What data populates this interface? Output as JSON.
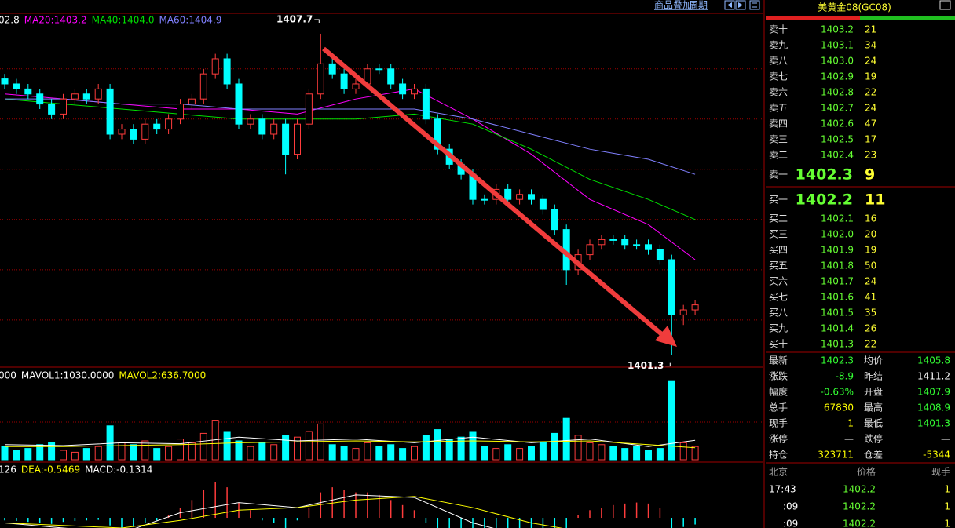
{
  "toolbar": {
    "overlay": "商品叠加",
    "period": "周期"
  },
  "chart_data": {
    "type": "candlestick",
    "ylim": [
      1401.06,
      1408.09
    ],
    "price_grid": [
      1402,
      1403,
      1404,
      1405,
      1406,
      1407
    ],
    "ma_prefix": "02.8",
    "open": [
      1406.8,
      1406.7,
      1406.6,
      1406.5,
      1406.3,
      1406.1,
      1406.4,
      1406.5,
      1406.4,
      1406.6,
      1405.7,
      1405.8,
      1405.6,
      1405.9,
      1405.8,
      1406.0,
      1406.3,
      1406.4,
      1406.9,
      1407.2,
      1406.7,
      1405.9,
      1406.0,
      1405.7,
      1405.9,
      1405.3,
      1405.9,
      1406.5,
      1407.1,
      1406.9,
      1406.6,
      1406.7,
      1407.0,
      1407.0,
      1406.7,
      1406.5,
      1406.6,
      1406.0,
      1405.4,
      1405.1,
      1404.9,
      1404.4,
      1404.4,
      1404.6,
      1404.4,
      1404.5,
      1404.4,
      1404.2,
      1403.8,
      1403.0,
      1403.3,
      1403.5,
      1403.6,
      1403.6,
      1403.5,
      1403.5,
      1403.4,
      1403.2,
      1402.1,
      1402.2
    ],
    "high": [
      1406.9,
      1406.8,
      1406.7,
      1406.6,
      1406.4,
      1406.5,
      1406.6,
      1406.6,
      1406.7,
      1406.7,
      1405.9,
      1405.9,
      1406.0,
      1406.0,
      1406.1,
      1406.4,
      1406.5,
      1407.0,
      1407.3,
      1407.3,
      1406.8,
      1406.1,
      1406.1,
      1406.0,
      1406.0,
      1406.0,
      1406.6,
      1407.7,
      1407.2,
      1407.0,
      1406.8,
      1407.1,
      1407.1,
      1407.1,
      1406.8,
      1406.7,
      1406.7,
      1406.1,
      1405.5,
      1405.2,
      1405.0,
      1404.5,
      1404.7,
      1404.7,
      1404.6,
      1404.6,
      1404.5,
      1404.3,
      1403.9,
      1403.4,
      1403.6,
      1403.7,
      1403.7,
      1403.7,
      1403.6,
      1403.6,
      1403.5,
      1403.3,
      1402.3,
      1402.4
    ],
    "low": [
      1406.6,
      1406.5,
      1406.4,
      1406.2,
      1406.0,
      1406.0,
      1406.3,
      1406.3,
      1406.3,
      1405.6,
      1405.6,
      1405.5,
      1405.5,
      1405.7,
      1405.7,
      1405.9,
      1406.2,
      1406.3,
      1406.8,
      1406.6,
      1405.8,
      1405.8,
      1405.6,
      1405.6,
      1404.9,
      1405.2,
      1405.8,
      1406.4,
      1406.8,
      1406.5,
      1406.5,
      1406.6,
      1406.9,
      1406.6,
      1406.4,
      1406.4,
      1405.9,
      1405.3,
      1405.0,
      1404.8,
      1404.3,
      1404.3,
      1404.3,
      1404.3,
      1404.3,
      1404.3,
      1404.1,
      1403.7,
      1402.7,
      1402.9,
      1403.2,
      1403.4,
      1403.5,
      1403.4,
      1403.4,
      1403.3,
      1403.1,
      1401.3,
      1401.9,
      1402.1
    ],
    "close": [
      1406.7,
      1406.6,
      1406.5,
      1406.3,
      1406.1,
      1406.4,
      1406.5,
      1406.4,
      1406.6,
      1405.7,
      1405.8,
      1405.6,
      1405.9,
      1405.8,
      1406.0,
      1406.3,
      1406.4,
      1406.9,
      1407.2,
      1406.7,
      1405.9,
      1406.0,
      1405.7,
      1405.9,
      1405.3,
      1405.9,
      1406.5,
      1407.1,
      1406.9,
      1406.6,
      1406.7,
      1407.0,
      1407.0,
      1406.7,
      1406.5,
      1406.6,
      1406.0,
      1405.4,
      1405.1,
      1404.9,
      1404.4,
      1404.4,
      1404.6,
      1404.4,
      1404.5,
      1404.4,
      1404.2,
      1403.8,
      1403.0,
      1403.3,
      1403.5,
      1403.6,
      1403.6,
      1403.5,
      1403.5,
      1403.4,
      1403.2,
      1402.1,
      1402.2,
      1402.3
    ],
    "up_color": "#ff3c3c",
    "down_color": "#00ffff",
    "ma_index": [
      0,
      5,
      10,
      15,
      20,
      25,
      30,
      35,
      40,
      45,
      50,
      55,
      59
    ],
    "ma_series": [
      {
        "name": "MA20:1403.2",
        "color": "#ff00ff",
        "values": [
          1406.5,
          1406.4,
          1406.3,
          1406.2,
          1406.2,
          1406.1,
          1406.4,
          1406.6,
          1406.0,
          1405.3,
          1404.4,
          1403.9,
          1403.2
        ]
      },
      {
        "name": "MA40:1404.0",
        "color": "#00e000",
        "values": [
          1406.4,
          1406.3,
          1406.2,
          1406.1,
          1406.0,
          1406.0,
          1406.0,
          1406.1,
          1405.9,
          1405.4,
          1404.8,
          1404.4,
          1404.0
        ]
      },
      {
        "name": "MA60:1404.9",
        "color": "#8080ff",
        "values": [
          1406.4,
          1406.4,
          1406.3,
          1406.3,
          1406.2,
          1406.2,
          1406.2,
          1406.2,
          1406.0,
          1405.7,
          1405.4,
          1405.2,
          1404.9
        ]
      }
    ],
    "annotations": [
      {
        "text": "1407.7",
        "index": 27
      },
      {
        "text": "1401.3",
        "index": 57
      }
    ],
    "volume": {
      "prefix": "000",
      "vlim": [
        0,
        4500
      ],
      "grid": [
        2000
      ],
      "values": [
        700,
        500,
        600,
        800,
        900,
        500,
        400,
        600,
        700,
        1800,
        900,
        800,
        1000,
        600,
        700,
        1100,
        900,
        1400,
        2100,
        1500,
        1000,
        700,
        900,
        800,
        1300,
        1200,
        1500,
        1900,
        800,
        700,
        600,
        900,
        700,
        800,
        600,
        700,
        1300,
        1600,
        1100,
        1200,
        1500,
        700,
        600,
        800,
        600,
        700,
        900,
        1400,
        2200,
        1300,
        900,
        800,
        700,
        600,
        700,
        500,
        600,
        4200,
        900,
        700
      ],
      "series": [
        {
          "name": "MAVOL1:1030.0000",
          "color": "#ffffff",
          "values": [
            800,
            750,
            900,
            850,
            1200,
            1000,
            1100,
            900,
            1200,
            900,
            1100,
            700,
            1030
          ]
        },
        {
          "name": "MAVOL2:636.7000",
          "color": "#ffff00",
          "values": [
            700,
            700,
            750,
            800,
            900,
            950,
            1000,
            950,
            1000,
            950,
            1000,
            800,
            636.7
          ]
        }
      ]
    },
    "macd": {
      "prefix": "126",
      "mlim": [
        -0.2,
        1.08
      ],
      "dif": [
        -0.1,
        -0.2,
        -0.3,
        0.1,
        0.3,
        0.2,
        0.45,
        0.4,
        -0.1,
        -0.4,
        -0.5,
        -0.5,
        -0.6126
      ],
      "dea": {
        "name": "DEA:-0.5469",
        "color": "#ffff00",
        "values": [
          -0.1,
          -0.15,
          -0.2,
          -0.05,
          0.15,
          0.2,
          0.35,
          0.42,
          0.2,
          -0.1,
          -0.3,
          -0.4,
          -0.5469
        ]
      },
      "hist": {
        "name": "MACD:-0.1314",
        "values": [
          -0.05,
          -0.06,
          -0.08,
          -0.1,
          -0.12,
          -0.08,
          -0.06,
          -0.05,
          -0.04,
          -0.15,
          -0.2,
          -0.18,
          -0.1,
          -0.05,
          0.05,
          0.2,
          0.35,
          0.55,
          0.7,
          0.6,
          0.3,
          0.15,
          -0.05,
          -0.1,
          -0.2,
          -0.05,
          0.2,
          0.5,
          0.6,
          0.55,
          0.5,
          0.5,
          0.45,
          0.35,
          0.25,
          0.15,
          -0.1,
          -0.3,
          -0.4,
          -0.5,
          -0.6,
          -0.55,
          -0.45,
          -0.4,
          -0.35,
          -0.3,
          -0.3,
          -0.35,
          -0.2,
          0.05,
          0.15,
          0.2,
          0.25,
          0.28,
          0.3,
          0.28,
          0.2,
          -0.2,
          -0.18,
          -0.1314
        ]
      }
    }
  },
  "quote": {
    "title": "美黄金08(GC08)",
    "asks": [
      {
        "label": "卖十",
        "price": "1403.2",
        "qty": "21"
      },
      {
        "label": "卖九",
        "price": "1403.1",
        "qty": "34"
      },
      {
        "label": "卖八",
        "price": "1403.0",
        "qty": "24"
      },
      {
        "label": "卖七",
        "price": "1402.9",
        "qty": "19"
      },
      {
        "label": "卖六",
        "price": "1402.8",
        "qty": "22"
      },
      {
        "label": "卖五",
        "price": "1402.7",
        "qty": "24"
      },
      {
        "label": "卖四",
        "price": "1402.6",
        "qty": "47"
      },
      {
        "label": "卖三",
        "price": "1402.5",
        "qty": "17"
      },
      {
        "label": "卖二",
        "price": "1402.4",
        "qty": "23"
      },
      {
        "label": "卖一",
        "price": "1402.3",
        "qty": "9"
      }
    ],
    "bids": [
      {
        "label": "买一",
        "price": "1402.2",
        "qty": "11"
      },
      {
        "label": "买二",
        "price": "1402.1",
        "qty": "16"
      },
      {
        "label": "买三",
        "price": "1402.0",
        "qty": "20"
      },
      {
        "label": "买四",
        "price": "1401.9",
        "qty": "19"
      },
      {
        "label": "买五",
        "price": "1401.8",
        "qty": "50"
      },
      {
        "label": "买六",
        "price": "1401.7",
        "qty": "24"
      },
      {
        "label": "买七",
        "price": "1401.6",
        "qty": "41"
      },
      {
        "label": "买八",
        "price": "1401.5",
        "qty": "35"
      },
      {
        "label": "买九",
        "price": "1401.4",
        "qty": "26"
      },
      {
        "label": "买十",
        "price": "1401.3",
        "qty": "22"
      }
    ],
    "stats": [
      {
        "label": "最新",
        "value": "1402.3",
        "color": "#33ff33",
        "label2": "均价",
        "value2": "1405.8",
        "color2": "#33ff33"
      },
      {
        "label": "涨跌",
        "value": "-8.9",
        "color": "#33ff33",
        "label2": "昨结",
        "value2": "1411.2",
        "color2": "#ffffff"
      },
      {
        "label": "幅度",
        "value": "-0.63%",
        "color": "#33ff33",
        "label2": "开盘",
        "value2": "1407.9",
        "color2": "#33ff33"
      },
      {
        "label": "总手",
        "value": "67830",
        "color": "#ffff00",
        "label2": "最高",
        "value2": "1408.9",
        "color2": "#33ff33"
      },
      {
        "label": "现手",
        "value": "1",
        "color": "#ffff00",
        "label2": "最低",
        "value2": "1401.3",
        "color2": "#33ff33"
      },
      {
        "label": "涨停",
        "value": "—",
        "color": "#ffffff",
        "label2": "跌停",
        "value2": "—",
        "color2": "#ffffff"
      },
      {
        "label": "持仓",
        "value": "323711",
        "color": "#ffff00",
        "label2": "仓差",
        "value2": "-5344",
        "color2": "#ffff00"
      }
    ],
    "trades_header": [
      "北京",
      "价格",
      "现手"
    ],
    "trades": [
      {
        "time": "17:43",
        "price": "1402.2",
        "qty": "1"
      },
      {
        "time": ":09",
        "price": "1402.2",
        "qty": "1"
      },
      {
        "time": ":09",
        "price": "1402.2",
        "qty": "1"
      }
    ]
  }
}
